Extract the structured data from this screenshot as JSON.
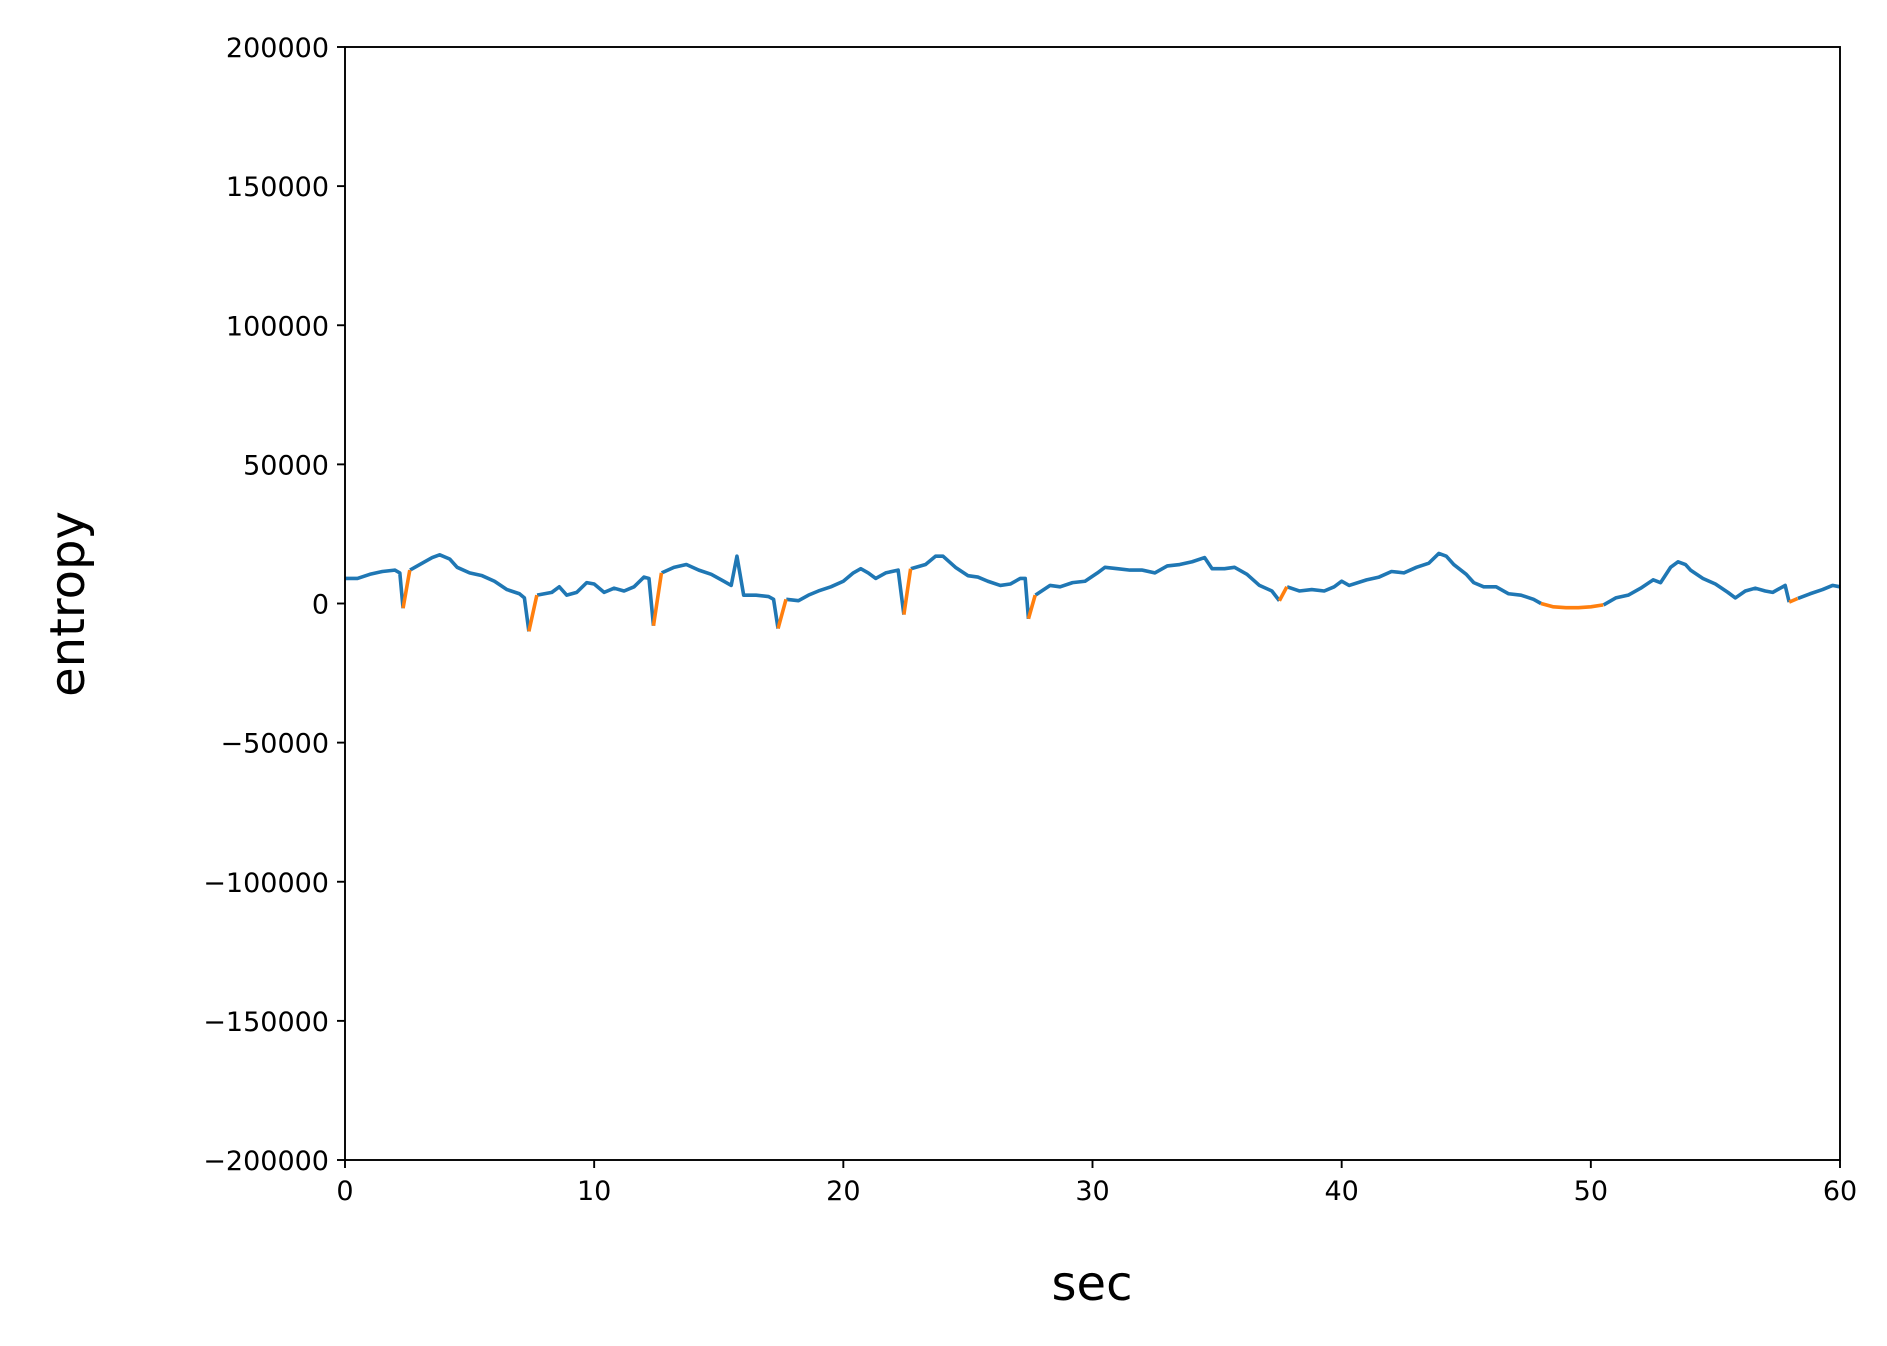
{
  "chart_data": {
    "type": "line",
    "xlabel": "sec",
    "ylabel": "entropy",
    "xlim": [
      0,
      60
    ],
    "xticks": [
      0,
      10,
      20,
      30,
      40,
      50,
      60
    ],
    "ylim": [
      -200000,
      200000
    ],
    "yticks": [
      {
        "value": -200000,
        "label": "−200000"
      },
      {
        "value": -150000,
        "label": "−150000"
      },
      {
        "value": -100000,
        "label": "−100000"
      },
      {
        "value": -50000,
        "label": "−50000"
      },
      0,
      50000,
      100000,
      150000,
      200000
    ],
    "x": [
      0,
      0.5,
      1,
      1.5,
      2,
      2.2,
      2.33,
      2.6,
      2.61,
      3,
      3.5,
      3.8,
      4.2,
      4.5,
      5,
      5.5,
      6,
      6.5,
      7,
      7.2,
      7.38,
      7.7,
      7.71,
      8.3,
      8.6,
      8.9,
      9.3,
      9.7,
      10,
      10.4,
      10.8,
      11.2,
      11.6,
      12,
      12.2,
      12.38,
      12.7,
      12.71,
      13.2,
      13.7,
      14.2,
      14.7,
      15.2,
      15.5,
      15.73,
      16,
      16.5,
      17,
      17.2,
      17.38,
      17.7,
      17.71,
      18.2,
      18.6,
      19,
      19.5,
      20,
      20.4,
      20.7,
      21,
      21.3,
      21.7,
      22.2,
      22.43,
      22.7,
      22.71,
      23.3,
      23.7,
      24,
      24.5,
      25,
      25.4,
      25.8,
      26.3,
      26.7,
      27.1,
      27.3,
      27.43,
      27.7,
      27.71,
      28.3,
      28.7,
      29.2,
      29.7,
      30.2,
      30.5,
      31,
      31.5,
      32,
      32.5,
      33,
      33.5,
      34,
      34.5,
      34.8,
      35.3,
      35.7,
      36.2,
      36.7,
      37.2,
      37.5,
      37.8,
      37.81,
      38.3,
      38.8,
      39.3,
      39.7,
      40,
      40.3,
      41,
      41.5,
      42,
      42.5,
      43,
      43.5,
      43.9,
      44.2,
      44.5,
      45,
      45.3,
      45.7,
      46.2,
      46.7,
      47.2,
      47.7,
      48,
      48.5,
      49,
      49.5,
      50,
      50.5,
      50.51,
      51,
      51.5,
      52,
      52.5,
      52.8,
      53.2,
      53.5,
      53.8,
      54,
      54.5,
      55,
      55.5,
      55.8,
      56.2,
      56.6,
      57,
      57.3,
      57.6,
      57.8,
      57.96,
      58.3,
      58.31,
      58.8,
      59.3,
      59.7,
      60
    ],
    "series": [
      {
        "color": "#1f77b4",
        "values": [
          9000,
          9000,
          10500,
          11500,
          12000,
          11000,
          -1700,
          null,
          12000,
          14000,
          16500,
          17500,
          16000,
          13000,
          11000,
          10000,
          8000,
          5000,
          3500,
          2000,
          -10000,
          null,
          3000,
          4000,
          6000,
          3000,
          4000,
          7500,
          7000,
          4000,
          5500,
          4500,
          6000,
          9500,
          9000,
          -8000,
          null,
          11000,
          13000,
          14000,
          12000,
          10500,
          8000,
          6500,
          17000,
          3000,
          3000,
          2500,
          1500,
          -9000,
          null,
          1500,
          1000,
          3000,
          4500,
          6000,
          8000,
          11000,
          12500,
          11000,
          9000,
          11000,
          12000,
          -4000,
          null,
          12500,
          14000,
          17000,
          17000,
          13000,
          10000,
          9500,
          8000,
          6500,
          7000,
          9000,
          9000,
          -5500,
          null,
          3000,
          6500,
          6000,
          7500,
          8000,
          11000,
          13000,
          12500,
          12000,
          12000,
          11000,
          13500,
          14000,
          15000,
          16500,
          12500,
          12500,
          13000,
          10500,
          6500,
          4500,
          1000,
          null,
          6000,
          4500,
          5000,
          4500,
          6000,
          8000,
          6500,
          8500,
          9500,
          11500,
          11000,
          13000,
          14500,
          18000,
          17000,
          14000,
          10500,
          7500,
          6000,
          6000,
          3500,
          3000,
          1500,
          0,
          null,
          null,
          null,
          null,
          null,
          -500,
          2000,
          3000,
          5500,
          8500,
          7500,
          13000,
          15000,
          14000,
          12000,
          9000,
          7000,
          4000,
          2000,
          4500,
          5500,
          4500,
          4000,
          5500,
          6500,
          500,
          null,
          1800,
          3500,
          5000,
          6500,
          6000
        ]
      },
      {
        "color": "#ff7f0e",
        "values": [
          null,
          null,
          null,
          null,
          null,
          null,
          -1700,
          12000,
          null,
          null,
          null,
          null,
          null,
          null,
          null,
          null,
          null,
          null,
          null,
          null,
          -10000,
          3000,
          null,
          null,
          null,
          null,
          null,
          null,
          null,
          null,
          null,
          null,
          null,
          null,
          null,
          -8000,
          11000,
          null,
          null,
          null,
          null,
          null,
          null,
          null,
          null,
          null,
          null,
          null,
          null,
          -9000,
          1500,
          null,
          null,
          null,
          null,
          null,
          null,
          null,
          null,
          null,
          null,
          null,
          null,
          -4000,
          12500,
          null,
          null,
          null,
          null,
          null,
          null,
          null,
          null,
          null,
          null,
          null,
          null,
          -5500,
          3000,
          null,
          null,
          null,
          null,
          null,
          null,
          null,
          null,
          null,
          null,
          null,
          null,
          null,
          null,
          null,
          null,
          null,
          null,
          null,
          null,
          null,
          1000,
          6000,
          null,
          null,
          null,
          null,
          null,
          null,
          null,
          null,
          null,
          null,
          null,
          null,
          null,
          null,
          null,
          null,
          null,
          null,
          null,
          null,
          null,
          null,
          null,
          0,
          -1200,
          -1500,
          -1500,
          -1200,
          -500,
          null,
          null,
          null,
          null,
          null,
          null,
          null,
          null,
          null,
          null,
          null,
          null,
          null,
          null,
          null,
          null,
          null,
          null,
          null,
          null,
          500,
          1800,
          null,
          null,
          null,
          null,
          null
        ]
      }
    ]
  }
}
